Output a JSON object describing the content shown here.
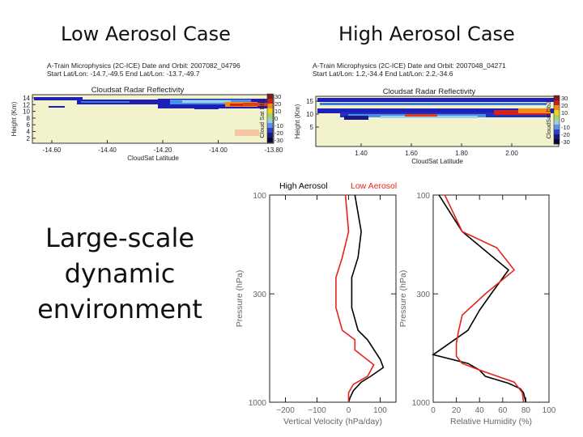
{
  "headings": {
    "low": "Low Aerosol Case",
    "high": "High Aerosol Case",
    "side_lines": [
      "Large-scale",
      "dynamic",
      "environment"
    ]
  },
  "colors": {
    "high_aerosol": "#000000",
    "low_aerosol": "#e8231c"
  },
  "chart_data": [
    {
      "type": "heatmap",
      "header_lines": [
        "A-Train Microphysics (2C-ICE)    Date and Orbit: 2007082_04796",
        "Start Lat/Lon: -14.7,-49.5    End Lat/Lon: -13.7,-49.7"
      ],
      "title": "Cloudsat Radar Reflectivity",
      "xlabel": "CloudSat Latitude",
      "ylabel": "Height (Km)",
      "x_ticks": [
        "-14.60",
        "-14.40",
        "-14.20",
        "-14.00",
        "-13.80"
      ],
      "y_ticks": [
        "14",
        "12",
        "10",
        "8",
        "6",
        "4",
        "2"
      ],
      "colorbar": {
        "label": "Cloud Sat DbZ",
        "ticks": [
          "30",
          "20",
          "10",
          "0",
          "-10",
          "-20",
          "-30"
        ]
      }
    },
    {
      "type": "heatmap",
      "header_lines": [
        "A-Train Microphysics (2C-ICE)    Date and Orbit: 2007048_04271",
        "Start Lat/Lon: 1.2,-34.4    End Lat/Lon: 2.2,-34.6"
      ],
      "title": "Cloudsat Radar Reflectivity",
      "xlabel": "CloudSat Latitude",
      "ylabel": "Height (Km)",
      "x_ticks": [
        "1.40",
        "1.60",
        "1.80",
        "2.00"
      ],
      "y_ticks": [
        "15",
        "10",
        "5"
      ],
      "colorbar": {
        "label": "CloudSat DbZ",
        "ticks": [
          "30",
          "20",
          "10",
          "0",
          "-10",
          "-20",
          "-30"
        ]
      }
    },
    {
      "type": "line",
      "legend": [
        "High Aerosol",
        "Low Aerosol"
      ],
      "xlabel": "Vertical Velocity (hPa/day)",
      "ylabel": "Pressure (hPa)",
      "xlim": [
        -250,
        150
      ],
      "ylim": [
        100,
        1000
      ],
      "x_ticks": [
        -200,
        -100,
        0,
        100
      ],
      "y_ticks": [
        100,
        300,
        1000
      ],
      "series": [
        {
          "name": "High Aerosol",
          "points": [
            [
              20,
              100
            ],
            [
              40,
              150
            ],
            [
              30,
              200
            ],
            [
              10,
              250
            ],
            [
              10,
              350
            ],
            [
              30,
              450
            ],
            [
              60,
              500
            ],
            [
              100,
              620
            ],
            [
              110,
              680
            ],
            [
              70,
              750
            ],
            [
              40,
              800
            ],
            [
              15,
              880
            ],
            [
              5,
              950
            ],
            [
              0,
              1000
            ]
          ]
        },
        {
          "name": "Low Aerosol",
          "points": [
            [
              -10,
              100
            ],
            [
              0,
              150
            ],
            [
              -20,
              200
            ],
            [
              -40,
              250
            ],
            [
              -40,
              350
            ],
            [
              -20,
              450
            ],
            [
              20,
              500
            ],
            [
              20,
              560
            ],
            [
              80,
              660
            ],
            [
              60,
              750
            ],
            [
              15,
              820
            ],
            [
              0,
              900
            ],
            [
              0,
              1000
            ]
          ]
        }
      ]
    },
    {
      "type": "line",
      "xlabel": "Relative Humidity (%)",
      "ylabel": "Pressure (hPa)",
      "xlim": [
        0,
        100
      ],
      "ylim": [
        100,
        1000
      ],
      "x_ticks": [
        0,
        20,
        40,
        60,
        80,
        100
      ],
      "y_ticks": [
        100,
        300,
        1000
      ],
      "series": [
        {
          "name": "High Aerosol",
          "points": [
            [
              5,
              100
            ],
            [
              25,
              150
            ],
            [
              65,
              230
            ],
            [
              50,
              300
            ],
            [
              40,
              360
            ],
            [
              30,
              450
            ],
            [
              0,
              590
            ],
            [
              30,
              650
            ],
            [
              40,
              700
            ],
            [
              45,
              750
            ],
            [
              65,
              810
            ],
            [
              75,
              860
            ],
            [
              78,
              900
            ],
            [
              80,
              1000
            ]
          ]
        },
        {
          "name": "Low Aerosol",
          "points": [
            [
              10,
              100
            ],
            [
              25,
              150
            ],
            [
              55,
              180
            ],
            [
              70,
              230
            ],
            [
              45,
              300
            ],
            [
              25,
              380
            ],
            [
              22,
              450
            ],
            [
              20,
              520
            ],
            [
              20,
              600
            ],
            [
              25,
              650
            ],
            [
              40,
              700
            ],
            [
              70,
              800
            ],
            [
              77,
              900
            ],
            [
              78,
              1000
            ]
          ]
        }
      ]
    }
  ]
}
